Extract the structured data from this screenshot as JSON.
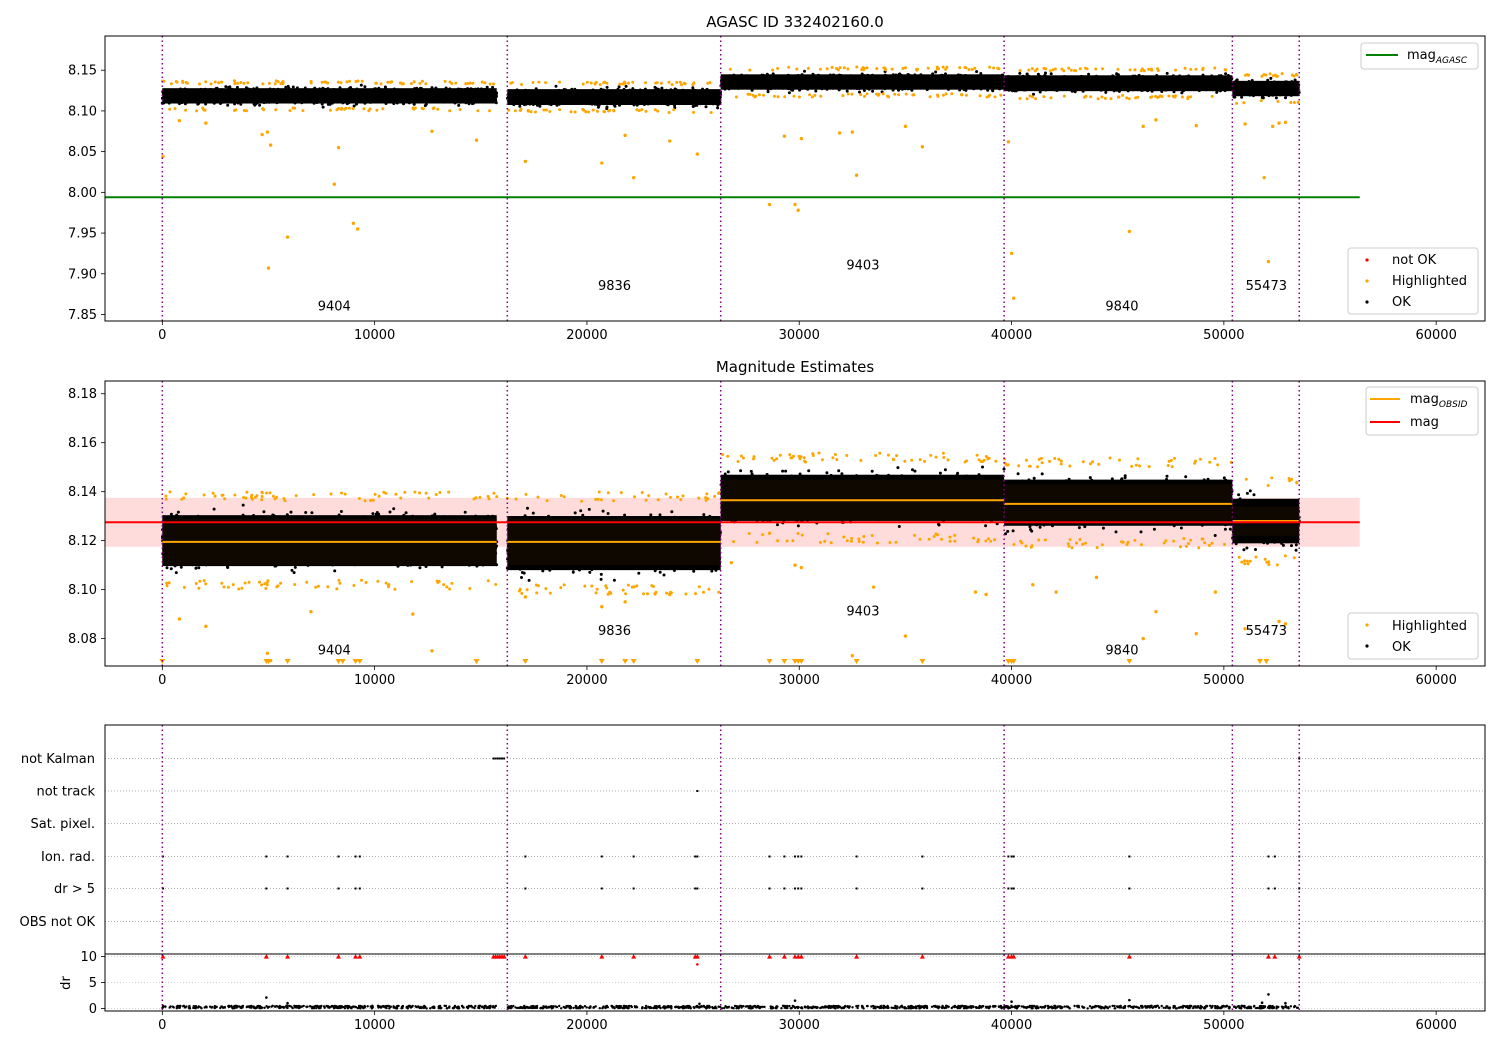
{
  "chart_data": [
    {
      "type": "scatter",
      "title": "AGASC ID 332402160.0",
      "xlim": [
        -2700,
        62300
      ],
      "ylim": [
        7.842,
        8.192
      ],
      "xticks": [
        0,
        10000,
        20000,
        30000,
        40000,
        50000,
        60000
      ],
      "yticks": [
        7.85,
        7.9,
        7.95,
        8.0,
        8.05,
        8.1,
        8.15
      ],
      "ytick_decimals": 2,
      "legend_lines": [
        {
          "label": "mag",
          "sub": "AGASC",
          "color": "#008000",
          "location": "top-right"
        }
      ],
      "legend_markers": [
        {
          "label": "not OK",
          "color": "#ff0000",
          "location": "bottom-right"
        },
        {
          "label": "Highlighted",
          "color": "#ffa500",
          "location": "bottom-right"
        },
        {
          "label": "OK",
          "color": "#000000",
          "location": "bottom-right"
        }
      ],
      "reference_line": {
        "name": "mag_AGASC",
        "y": 7.994,
        "x": [
          -2700,
          56400
        ],
        "color": "#008000"
      },
      "obsid_boundaries": [
        0,
        16250,
        26300,
        39650,
        50400,
        53550
      ],
      "obsid_labels": [
        {
          "label": "9404",
          "x": 8100,
          "y": 7.855
        },
        {
          "label": "9836",
          "x": 21300,
          "y": 7.88
        },
        {
          "label": "9403",
          "x": 33000,
          "y": 7.905
        },
        {
          "label": "9840",
          "x": 45200,
          "y": 7.855
        },
        {
          "label": "55473",
          "x": 52000,
          "y": 7.88
        }
      ],
      "ok_bands": [
        {
          "x": [
            0,
            15750
          ],
          "ymin": 8.104,
          "ymax": 8.133
        },
        {
          "x": [
            16250,
            26300
          ],
          "ymin": 8.102,
          "ymax": 8.132
        },
        {
          "x": [
            26300,
            39650
          ],
          "ymin": 8.121,
          "ymax": 8.15
        },
        {
          "x": [
            39650,
            50400
          ],
          "ymin": 8.119,
          "ymax": 8.149
        },
        {
          "x": [
            50400,
            53550
          ],
          "ymin": 8.113,
          "ymax": 8.142
        }
      ],
      "highlighted_points": [
        [
          30,
          8.044
        ],
        [
          800,
          8.088
        ],
        [
          2050,
          8.085
        ],
        [
          4700,
          8.071
        ],
        [
          4950,
          8.074
        ],
        [
          5000,
          7.907
        ],
        [
          5100,
          8.058
        ],
        [
          5900,
          7.945
        ],
        [
          8100,
          8.01
        ],
        [
          8300,
          8.055
        ],
        [
          9000,
          7.962
        ],
        [
          9200,
          7.955
        ],
        [
          12700,
          8.075
        ],
        [
          14800,
          8.064
        ],
        [
          17100,
          8.038
        ],
        [
          20700,
          8.036
        ],
        [
          21800,
          8.07
        ],
        [
          22200,
          8.018
        ],
        [
          23900,
          8.063
        ],
        [
          25200,
          8.047
        ],
        [
          28600,
          7.985
        ],
        [
          29300,
          8.069
        ],
        [
          29800,
          7.985
        ],
        [
          29950,
          7.978
        ],
        [
          30100,
          8.066
        ],
        [
          31900,
          8.073
        ],
        [
          32500,
          8.074
        ],
        [
          32700,
          8.021
        ],
        [
          35000,
          8.081
        ],
        [
          35800,
          8.056
        ],
        [
          39850,
          8.062
        ],
        [
          40000,
          7.925
        ],
        [
          40100,
          7.87
        ],
        [
          45550,
          7.952
        ],
        [
          46200,
          8.081
        ],
        [
          46800,
          8.089
        ],
        [
          48700,
          8.082
        ],
        [
          51000,
          8.084
        ],
        [
          51900,
          8.018
        ],
        [
          52100,
          7.915
        ],
        [
          52300,
          8.081
        ],
        [
          52600,
          8.085
        ],
        [
          52900,
          8.086
        ]
      ]
    },
    {
      "type": "scatter",
      "title": "Magnitude Estimates",
      "xlim": [
        -2700,
        62300
      ],
      "ylim": [
        8.0688,
        8.1852
      ],
      "xticks": [
        0,
        10000,
        20000,
        30000,
        40000,
        50000,
        60000
      ],
      "yticks": [
        8.08,
        8.1,
        8.12,
        8.14,
        8.16,
        8.18
      ],
      "ytick_decimals": 2,
      "legend_lines": [
        {
          "label": "mag",
          "sub": "OBSID",
          "color": "#ffa500",
          "location": "top-right"
        },
        {
          "label": "mag",
          "sub": "",
          "color": "#ff0000",
          "location": "top-right"
        }
      ],
      "legend_markers": [
        {
          "label": "Highlighted",
          "color": "#ffa500",
          "location": "bottom-right"
        },
        {
          "label": "OK",
          "color": "#000000",
          "location": "bottom-right"
        }
      ],
      "mag_line": {
        "y": 8.1275,
        "x": [
          -2700,
          56400
        ],
        "band": [
          8.1175,
          8.1375
        ],
        "color": "#ff0000",
        "band_color": "#ffc0c0"
      },
      "obsid_boundaries": [
        0,
        16250,
        26300,
        39650,
        50400,
        53550
      ],
      "obsid_mags": [
        {
          "x": [
            0,
            15750
          ],
          "mag": 8.1195,
          "std": [
            8.11,
            8.129
          ]
        },
        {
          "x": [
            16250,
            26300
          ],
          "mag": 8.1195,
          "std": [
            8.11,
            8.129
          ]
        },
        {
          "x": [
            26300,
            39650
          ],
          "mag": 8.1365,
          "std": [
            8.128,
            8.145
          ]
        },
        {
          "x": [
            39650,
            50400
          ],
          "mag": 8.135,
          "std": [
            8.127,
            8.143
          ]
        },
        {
          "x": [
            50400,
            53550
          ],
          "mag": 8.128,
          "std": [
            8.122,
            8.134
          ]
        }
      ],
      "obsid_labels": [
        {
          "label": "9404",
          "x": 8100,
          "y": 8.0735
        },
        {
          "label": "9836",
          "x": 21300,
          "y": 8.0815
        },
        {
          "label": "9403",
          "x": 33000,
          "y": 8.0895
        },
        {
          "label": "9840",
          "x": 45200,
          "y": 8.0735
        },
        {
          "label": "55473",
          "x": 52000,
          "y": 8.0815
        }
      ],
      "ok_bands": [
        {
          "x": [
            0,
            15750
          ],
          "ymin": 8.104,
          "ymax": 8.136
        },
        {
          "x": [
            16250,
            26300
          ],
          "ymin": 8.102,
          "ymax": 8.136
        },
        {
          "x": [
            26300,
            39650
          ],
          "ymin": 8.123,
          "ymax": 8.152
        },
        {
          "x": [
            39650,
            50400
          ],
          "ymin": 8.121,
          "ymax": 8.15
        },
        {
          "x": [
            50400,
            53550
          ],
          "ymin": 8.114,
          "ymax": 8.142
        }
      ],
      "highlighted_points": [
        [
          800,
          8.088
        ],
        [
          2050,
          8.085
        ],
        [
          4950,
          8.074
        ],
        [
          5100,
          8.071
        ],
        [
          7000,
          8.091
        ],
        [
          12700,
          8.075
        ],
        [
          11800,
          8.09
        ],
        [
          17100,
          8.097
        ],
        [
          20700,
          8.093
        ],
        [
          21800,
          8.095
        ],
        [
          23900,
          8.098
        ],
        [
          26800,
          8.111
        ],
        [
          28600,
          8.123
        ],
        [
          29800,
          8.11
        ],
        [
          30100,
          8.109
        ],
        [
          32500,
          8.073
        ],
        [
          33500,
          8.101
        ],
        [
          35000,
          8.081
        ],
        [
          38300,
          8.099
        ],
        [
          38800,
          8.098
        ],
        [
          41000,
          8.102
        ],
        [
          42100,
          8.099
        ],
        [
          44000,
          8.105
        ],
        [
          46200,
          8.08
        ],
        [
          46800,
          8.091
        ],
        [
          48700,
          8.082
        ],
        [
          49600,
          8.099
        ],
        [
          51000,
          8.084
        ],
        [
          52600,
          8.087
        ],
        [
          52900,
          8.086
        ]
      ],
      "below_range_markers": [
        0,
        4900,
        5000,
        5900,
        8300,
        8500,
        9100,
        9300,
        14800,
        17100,
        20700,
        21800,
        22200,
        25200,
        28600,
        29300,
        29800,
        29950,
        30100,
        32700,
        35800,
        39850,
        40000,
        40100,
        45550,
        51700,
        52000
      ]
    },
    {
      "type": "scatter",
      "title": "",
      "xlim": [
        -2700,
        62300
      ],
      "xticks": [
        0,
        10000,
        20000,
        30000,
        40000,
        50000,
        60000
      ],
      "flag_rows": [
        "not Kalman",
        "not track",
        "Sat. pixel.",
        "Ion. rad.",
        "dr > 5",
        "OBS not OK"
      ],
      "obsid_boundaries": [
        0,
        16250,
        26300,
        39650,
        50400,
        53550
      ],
      "flags": {
        "not Kalman": [
          15600,
          15700,
          15800,
          15900,
          16000,
          16100,
          53550
        ],
        "not track": [
          25200
        ],
        "Sat. pixel.": [],
        "Ion. rad.": [
          30,
          4900,
          5900,
          8300,
          9100,
          9300,
          17100,
          20700,
          22200,
          25100,
          25200,
          28600,
          29300,
          29800,
          29950,
          30100,
          32700,
          35800,
          39850,
          40000,
          40100,
          45550,
          52100,
          52400,
          53550
        ],
        "dr > 5": [
          30,
          4900,
          5900,
          8300,
          9100,
          9300,
          17100,
          20700,
          22200,
          25100,
          25200,
          28600,
          29300,
          29800,
          29950,
          30100,
          32700,
          35800,
          39850,
          40000,
          40100,
          45550,
          52100,
          52400,
          53550
        ],
        "OBS not OK": []
      },
      "dr_panel": {
        "ylabel": "dr",
        "ylim": [
          -0.5,
          10.5
        ],
        "yticks": [
          0,
          5,
          10
        ],
        "clipped_at": 10,
        "clipped_markers": [
          30,
          4900,
          5900,
          8300,
          9100,
          9300,
          15600,
          15700,
          15800,
          15900,
          16000,
          16100,
          17100,
          20700,
          22200,
          25100,
          25200,
          28600,
          29300,
          29800,
          29950,
          30100,
          32700,
          35800,
          39850,
          40000,
          40100,
          45550,
          52100,
          52400,
          53550
        ],
        "dr_points": [
          [
            4900,
            2.1
          ],
          [
            5900,
            1.0
          ],
          [
            25200,
            8.5
          ],
          [
            25300,
            0.9
          ],
          [
            29800,
            1.5
          ],
          [
            40000,
            1.3
          ],
          [
            45550,
            1.6
          ],
          [
            51800,
            1.1
          ],
          [
            52100,
            2.7
          ],
          [
            52900,
            1.0
          ]
        ]
      }
    }
  ]
}
